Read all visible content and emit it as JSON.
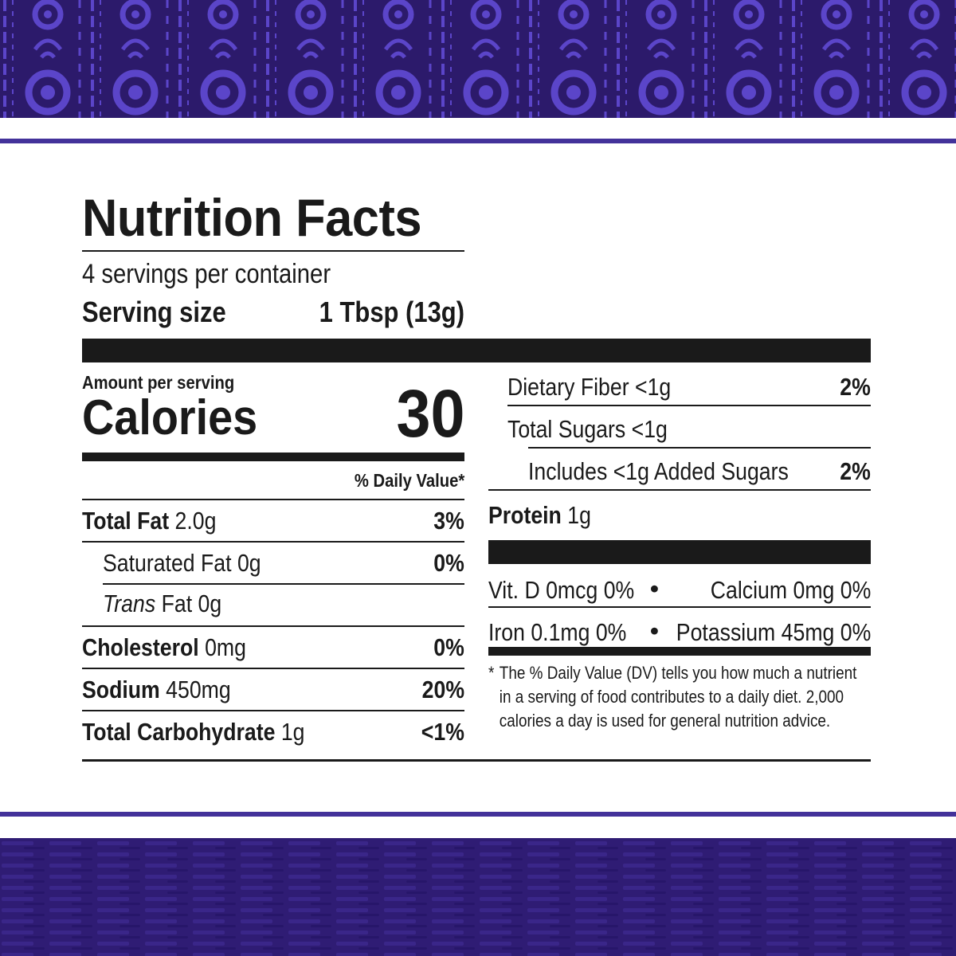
{
  "colors": {
    "banner": "#2c1a6b",
    "accent": "#43329a",
    "pattern": "#5b45c9",
    "ink": "#1a1a1a"
  },
  "label": {
    "title": "Nutrition Facts",
    "servings_per_container": "4 servings per container",
    "serving_size_label": "Serving size",
    "serving_size_value": "1 Tbsp (13g)",
    "amount_per_serving": "Amount per serving",
    "calories_label": "Calories",
    "calories_value": "30",
    "daily_value_header": "% Daily Value*",
    "nutrients": [
      {
        "name": "Total Fat",
        "amount": "2.0g",
        "dv": "3%"
      },
      {
        "name": "Saturated Fat",
        "amount": "0g",
        "dv": "0%"
      },
      {
        "name": "Trans",
        "amount": "Fat 0g",
        "dv": ""
      },
      {
        "name": "Cholesterol",
        "amount": "0mg",
        "dv": "0%"
      },
      {
        "name": "Sodium",
        "amount": "450mg",
        "dv": "20%"
      },
      {
        "name": "Total Carbohydrate",
        "amount": "1g",
        "dv": "<1%"
      },
      {
        "name": "Dietary Fiber",
        "amount": "<1g",
        "dv": "2%"
      },
      {
        "name": "Total Sugars",
        "amount": "<1g",
        "dv": ""
      },
      {
        "name": "Includes <1g Added Sugars",
        "amount": "",
        "dv": "2%"
      },
      {
        "name": "Protein",
        "amount": "1g",
        "dv": ""
      }
    ],
    "vitamins": {
      "vit_d": "Vit. D 0mcg 0%",
      "calcium": "Calcium 0mg 0%",
      "iron": "Iron 0.1mg 0%",
      "potassium": "Potassium 45mg 0%",
      "bullet": "•"
    },
    "footnote": {
      "star": "*",
      "text": "The % Daily Value (DV) tells you how much a nutrient in a serving of food contributes to a daily diet. 2,000 calories a day is used for general nutrition advice."
    }
  }
}
